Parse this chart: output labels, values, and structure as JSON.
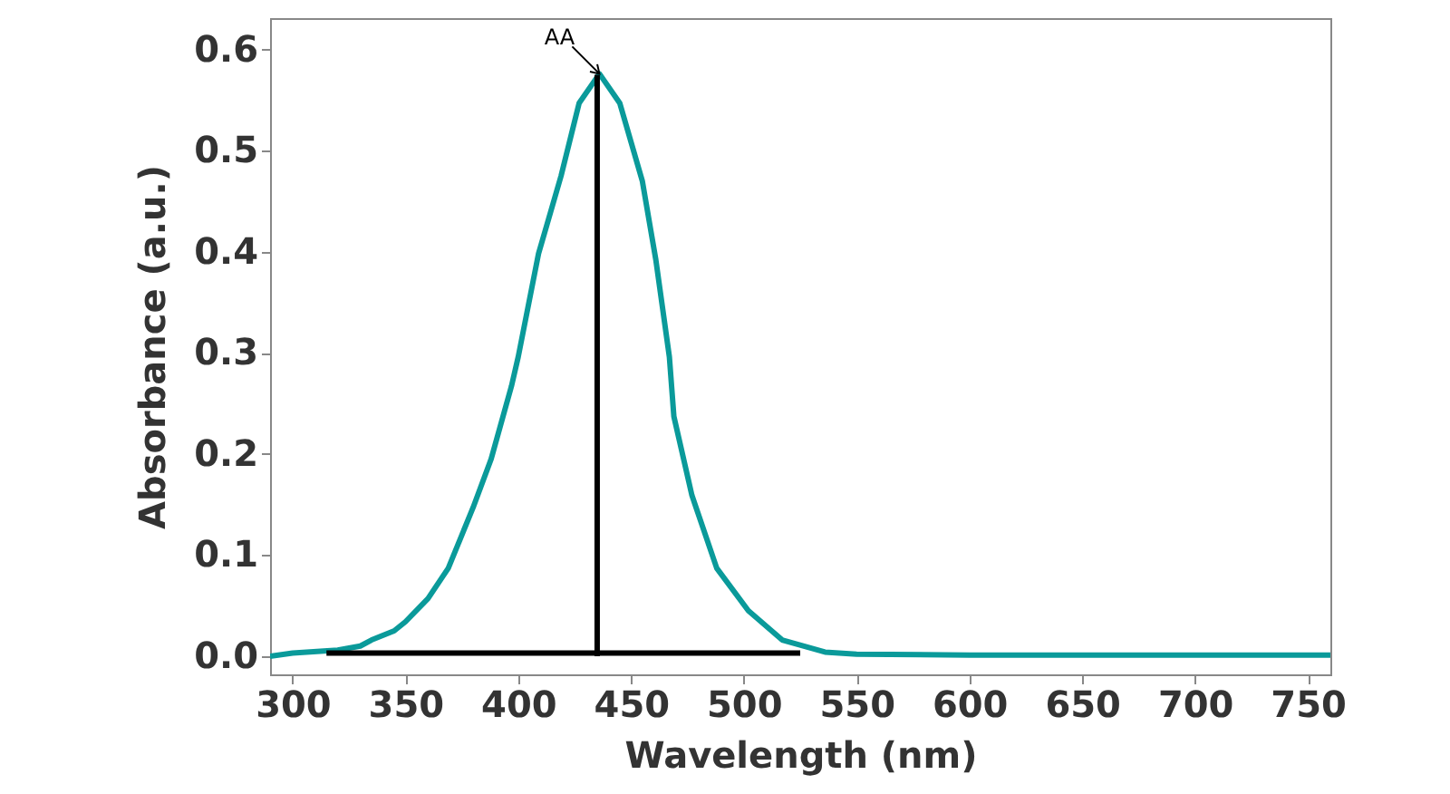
{
  "chart_data": {
    "type": "line",
    "xlabel": "Wavelength (nm)",
    "ylabel": "Absorbance (a.u.)",
    "xlim": [
      290,
      760
    ],
    "xticks": [
      300,
      350,
      400,
      450,
      500,
      550,
      600,
      650,
      700,
      750
    ],
    "ylim": [
      -0.018,
      0.631
    ],
    "yticks": [
      {
        "value": 0,
        "label": "0.0"
      },
      0.1,
      0.2,
      0.3,
      0.4,
      0.5,
      0.6
    ],
    "grid": false,
    "marker": "none",
    "line_style": "solid",
    "annotations": [
      {
        "text": "AA",
        "x": 436,
        "y": 0.576
      }
    ],
    "series": [
      {
        "color": "#0a9a9a",
        "x": [
          290,
          300,
          320,
          330,
          335,
          345,
          350,
          360,
          369,
          380,
          388,
          397,
          400,
          409,
          419,
          427,
          436,
          445,
          455,
          461,
          467,
          469,
          477,
          488,
          502,
          517,
          536,
          550,
          600,
          650,
          700,
          760
        ],
        "values": [
          0.0,
          0.003,
          0.006,
          0.01,
          0.016,
          0.025,
          0.034,
          0.057,
          0.087,
          0.147,
          0.195,
          0.267,
          0.296,
          0.398,
          0.475,
          0.547,
          0.576,
          0.547,
          0.47,
          0.392,
          0.296,
          0.237,
          0.159,
          0.087,
          0.045,
          0.016,
          0.004,
          0.002,
          0.001,
          0.001,
          0.001,
          0.001
        ]
      },
      {
        "color": "#000000",
        "x": [
          435,
          435
        ],
        "values": [
          0.0,
          0.575
        ]
      },
      {
        "color": "#000000",
        "x": [
          315,
          525
        ],
        "values": [
          0.003,
          0.003
        ]
      }
    ]
  }
}
